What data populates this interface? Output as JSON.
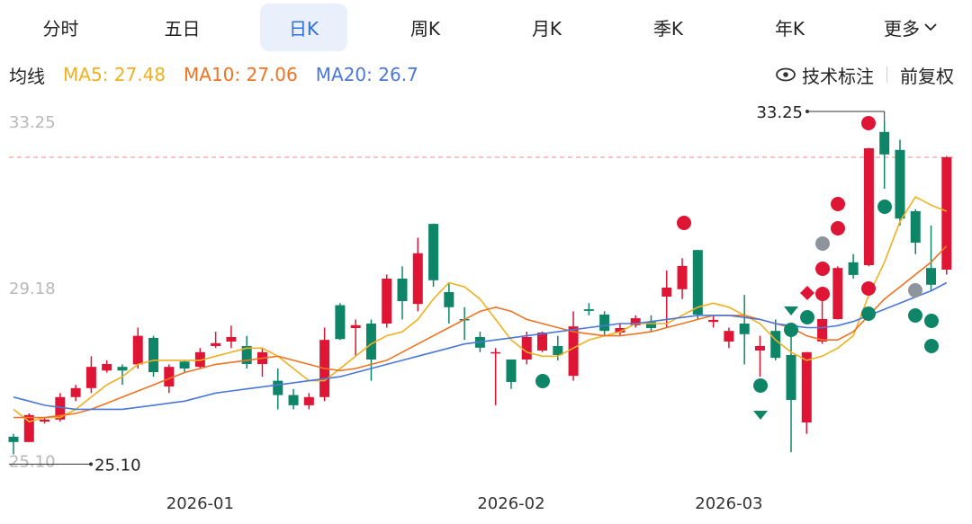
{
  "tabs": [
    "分时",
    "五日",
    "日K",
    "周K",
    "月K",
    "季K",
    "年K",
    "更多"
  ],
  "selected_tab": 2,
  "indicator_bar": {
    "title": "均线",
    "right": [
      "技术标注",
      "前复权"
    ]
  },
  "chart_data": {
    "type": "candlestick",
    "categories": [
      null,
      null,
      null,
      null,
      null,
      null,
      null,
      null,
      null,
      null,
      null,
      null,
      "2026-01",
      null,
      null,
      null,
      null,
      null,
      null,
      null,
      null,
      null,
      null,
      null,
      null,
      null,
      null,
      null,
      null,
      null,
      null,
      null,
      "2026-02",
      null,
      null,
      null,
      null,
      null,
      null,
      null,
      null,
      null,
      null,
      null,
      null,
      null,
      "2026-03",
      null,
      null,
      null,
      null,
      null,
      null,
      null,
      null,
      null,
      null,
      null,
      null,
      null,
      null
    ],
    "open": [
      25.53,
      25.4,
      25.9,
      25.95,
      26.5,
      26.72,
      27.15,
      27.24,
      27.3,
      27.95,
      26.76,
      27.37,
      27.24,
      27.75,
      27.86,
      27.75,
      27.31,
      26.9,
      26.55,
      26.3,
      26.5,
      28.75,
      28.19,
      28.3,
      28.3,
      29.4,
      28.78,
      30.74,
      29.07,
      28.41,
      27.97,
      27.57,
      27.42,
      27.42,
      27.64,
      27.75,
      27.02,
      28.65,
      28.52,
      28.08,
      28.26,
      28.34,
      28.96,
      29.14,
      30.1,
      28.34,
      27.86,
      28.3,
      27.64,
      28.12,
      27.53,
      25.88,
      27.86,
      28.41,
      29.8,
      29.73,
      32.99,
      32.55,
      31.05,
      29.66,
      29.62
    ],
    "high": [
      25.6,
      26.1,
      26.0,
      26.6,
      26.8,
      27.5,
      27.4,
      27.3,
      28.2,
      28.0,
      27.3,
      27.4,
      27.7,
      28.1,
      28.25,
      28.0,
      27.7,
      27.2,
      26.7,
      26.6,
      28.2,
      28.8,
      28.4,
      28.4,
      29.5,
      29.7,
      30.4,
      30.75,
      29.3,
      28.7,
      28.1,
      27.7,
      27.4,
      28.1,
      28.1,
      28.0,
      28.6,
      28.8,
      28.6,
      28.3,
      28.5,
      28.5,
      29.6,
      29.9,
      30.1,
      28.5,
      28.2,
      29.0,
      28.0,
      28.4,
      28.3,
      27.6,
      29.0,
      29.7,
      30.0,
      32.6,
      33.25,
      32.8,
      31.1,
      30.7,
      32.4
    ],
    "low": [
      25.1,
      25.4,
      25.85,
      25.9,
      26.4,
      26.6,
      27.1,
      26.8,
      27.2,
      27.0,
      26.6,
      27.1,
      27.2,
      27.7,
      27.7,
      27.2,
      27.0,
      26.2,
      26.2,
      26.2,
      26.4,
      27.9,
      27.5,
      26.9,
      28.2,
      28.4,
      28.6,
      29.2,
      28.3,
      27.9,
      27.6,
      26.3,
      26.7,
      27.3,
      27.6,
      27.4,
      26.9,
      28.5,
      28.0,
      28.0,
      28.2,
      28.1,
      28.2,
      28.9,
      28.4,
      28.2,
      27.7,
      27.3,
      27.0,
      27.4,
      25.15,
      25.6,
      27.8,
      28.4,
      29.4,
      29.7,
      31.6,
      30.7,
      30.0,
      29.1,
      29.5
    ],
    "close": [
      25.4,
      26.06,
      25.95,
      26.5,
      26.72,
      27.24,
      27.31,
      27.15,
      28.0,
      27.11,
      27.24,
      27.2,
      27.6,
      27.82,
      27.97,
      27.31,
      27.6,
      26.55,
      26.3,
      26.5,
      27.9,
      27.92,
      28.26,
      27.42,
      29.4,
      28.85,
      30.02,
      29.36,
      28.7,
      28.39,
      27.71,
      27.6,
      26.87,
      27.97,
      28.08,
      27.53,
      28.23,
      28.61,
      28.12,
      28.19,
      28.43,
      28.19,
      29.18,
      29.71,
      28.52,
      28.39,
      28.12,
      28.04,
      27.75,
      27.46,
      26.43,
      27.6,
      28.41,
      29.66,
      29.49,
      32.59,
      32.44,
      30.87,
      30.28,
      29.25,
      32.37
    ],
    "up_color": "#de1535",
    "down_color": "#0f8567",
    "series": [
      {
        "label": "MA5: 27.48",
        "color": "#f0b020",
        "values": [
          26.2,
          25.9,
          26.0,
          26.0,
          26.2,
          26.5,
          26.8,
          27.0,
          27.3,
          27.4,
          27.4,
          27.4,
          27.4,
          27.5,
          27.6,
          27.7,
          27.7,
          27.5,
          27.2,
          26.9,
          26.9,
          27.2,
          27.5,
          27.8,
          28.0,
          28.1,
          28.4,
          28.9,
          29.3,
          29.2,
          28.9,
          28.4,
          27.9,
          27.6,
          27.5,
          27.5,
          27.7,
          27.9,
          28.0,
          28.1,
          28.3,
          28.3,
          28.3,
          28.5,
          28.7,
          28.8,
          28.7,
          28.5,
          28.3,
          27.9,
          27.6,
          27.4,
          27.5,
          27.7,
          28.0,
          29.0,
          29.8,
          30.8,
          31.4,
          31.2,
          31.05
        ]
      },
      {
        "label": "MA10: 27.06",
        "color": "#f07322",
        "values": [
          26.0,
          26.0,
          26.0,
          26.05,
          26.1,
          26.2,
          26.35,
          26.5,
          26.65,
          26.8,
          26.95,
          27.1,
          27.2,
          27.3,
          27.35,
          27.4,
          27.45,
          27.5,
          27.4,
          27.3,
          27.2,
          27.15,
          27.2,
          27.3,
          27.4,
          27.6,
          27.8,
          28.0,
          28.2,
          28.4,
          28.6,
          28.7,
          28.6,
          28.4,
          28.3,
          28.2,
          28.1,
          28.05,
          28.0,
          28.0,
          28.05,
          28.1,
          28.2,
          28.3,
          28.4,
          28.5,
          28.5,
          28.5,
          28.4,
          28.3,
          28.2,
          28.0,
          27.9,
          27.9,
          28.1,
          28.5,
          28.9,
          29.2,
          29.5,
          29.8,
          30.2
        ]
      },
      {
        "label": "MA20: 26.7",
        "color": "#4a78d8",
        "values": [
          26.5,
          26.4,
          26.3,
          26.25,
          26.2,
          26.2,
          26.2,
          26.2,
          26.25,
          26.3,
          26.35,
          26.4,
          26.5,
          26.6,
          26.65,
          26.7,
          26.75,
          26.8,
          26.85,
          26.9,
          26.95,
          27.0,
          27.1,
          27.2,
          27.3,
          27.4,
          27.5,
          27.6,
          27.7,
          27.8,
          27.85,
          27.9,
          27.95,
          28.0,
          28.05,
          28.1,
          28.15,
          28.2,
          28.25,
          28.3,
          28.3,
          28.35,
          28.4,
          28.45,
          28.5,
          28.5,
          28.5,
          28.45,
          28.4,
          28.3,
          28.25,
          28.2,
          28.2,
          28.25,
          28.35,
          28.5,
          28.65,
          28.8,
          28.95,
          29.1,
          29.3
        ]
      }
    ],
    "ylim": [
      24.5,
      33.6
    ],
    "yticks": [
      {
        "value": 25.1,
        "label": "25.10"
      },
      29.18,
      33.25
    ],
    "annotations": [
      {
        "value": 33.25,
        "label": "33.25"
      },
      {
        "value": 25.1,
        "label": "25.10"
      }
    ]
  }
}
